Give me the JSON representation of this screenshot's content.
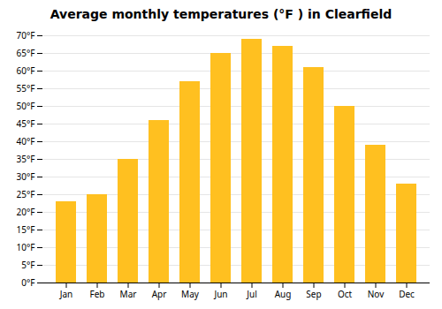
{
  "chart_data": {
    "type": "bar",
    "title": "Average monthly temperatures (°F ) in Clearfield",
    "categories": [
      "Jan",
      "Feb",
      "Mar",
      "Apr",
      "May",
      "Jun",
      "Jul",
      "Aug",
      "Sep",
      "Oct",
      "Nov",
      "Dec"
    ],
    "values": [
      23,
      25,
      35,
      46,
      57,
      65,
      69,
      67,
      61,
      50,
      39,
      28
    ],
    "color": "#FFC020",
    "ylim": [
      0,
      70
    ],
    "yticks": [
      {
        "value": 0,
        "label": "0°F"
      },
      {
        "value": 5,
        "label": "5°F"
      },
      {
        "value": 10,
        "label": "10°F"
      },
      {
        "value": 15,
        "label": "15°F"
      },
      {
        "value": 20,
        "label": "20°F"
      },
      {
        "value": 25,
        "label": "25°F"
      },
      {
        "value": 30,
        "label": "30°F"
      },
      {
        "value": 35,
        "label": "35°F"
      },
      {
        "value": 40,
        "label": "40°F"
      },
      {
        "value": 45,
        "label": "45°F"
      },
      {
        "value": 50,
        "label": "50°F"
      },
      {
        "value": 55,
        "label": "55°F"
      },
      {
        "value": 60,
        "label": "60°F"
      },
      {
        "value": 65,
        "label": "65°F"
      },
      {
        "value": 70,
        "label": "70°F"
      }
    ],
    "grid": true
  }
}
